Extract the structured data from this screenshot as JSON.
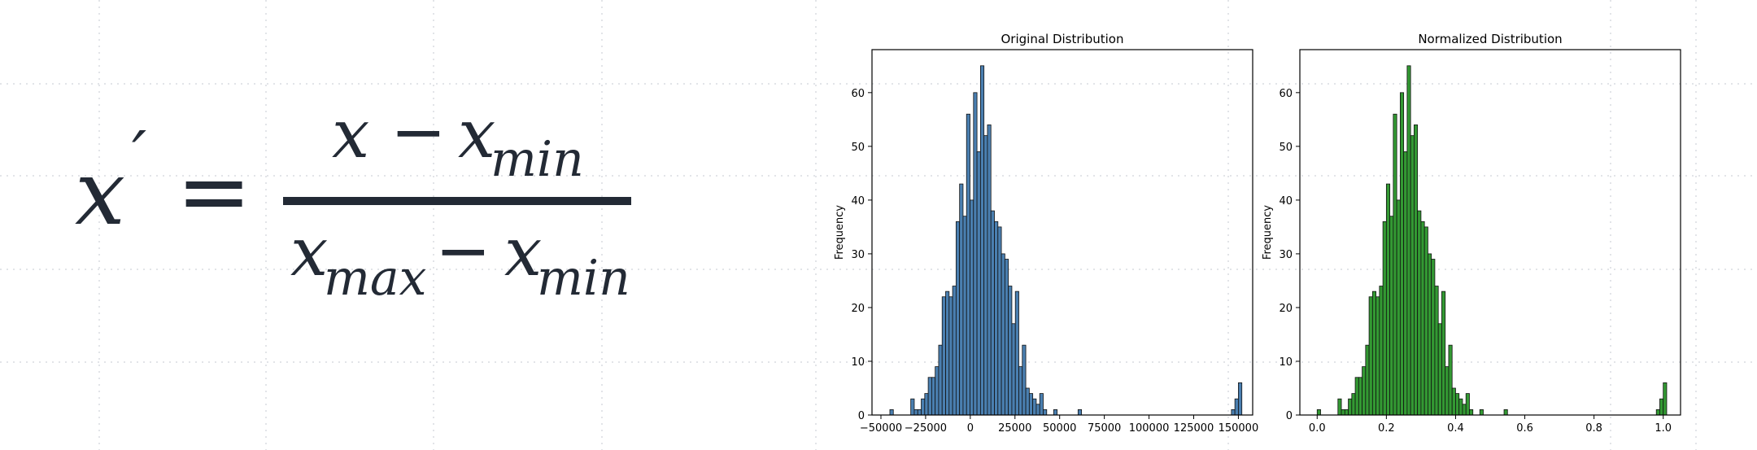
{
  "formula": {
    "lhs_var": "x",
    "lhs_prime": "′",
    "equals": "=",
    "num_x": "x",
    "num_minus": "−",
    "num_x2": "x",
    "num_sub": "min",
    "den_x": "x",
    "den_sub1": "max",
    "den_minus": "−",
    "den_x2": "x",
    "den_sub2": "min"
  },
  "chart_data": [
    {
      "type": "bar",
      "title": "Original Distribution",
      "xlabel": "",
      "ylabel": "Frequency",
      "xlim": [
        -55000,
        158000
      ],
      "ylim": [
        0,
        68
      ],
      "xticks": [
        -50000,
        -25000,
        0,
        25000,
        50000,
        75000,
        100000,
        125000,
        150000
      ],
      "xtick_labels": [
        "−50000",
        "−25000",
        "0",
        "25000",
        "50000",
        "75000",
        "100000",
        "125000",
        "150000"
      ],
      "yticks": [
        0,
        10,
        20,
        30,
        40,
        50,
        60
      ],
      "ytick_labels": [
        "0",
        "10",
        "20",
        "30",
        "40",
        "50",
        "60"
      ],
      "color": "#4a7fb0",
      "bin_start": -45000,
      "bin_width": 1950,
      "counts": [
        1,
        0,
        0,
        0,
        0,
        0,
        3,
        1,
        1,
        3,
        4,
        7,
        7,
        9,
        13,
        22,
        23,
        22,
        24,
        36,
        43,
        37,
        56,
        40,
        60,
        49,
        65,
        52,
        54,
        38,
        36,
        35,
        30,
        29,
        24,
        17,
        23,
        9,
        13,
        5,
        4,
        3,
        2,
        4,
        1,
        0,
        0,
        1,
        0,
        0,
        0,
        0,
        0,
        0,
        1,
        0,
        0,
        0,
        0,
        0,
        0,
        0,
        0,
        0,
        0,
        0,
        0,
        0,
        0,
        0,
        0,
        0,
        0,
        0,
        0,
        0,
        0,
        0,
        0,
        0,
        0,
        0,
        0,
        0,
        0,
        0,
        0,
        0,
        0,
        0,
        0,
        0,
        0,
        0,
        0,
        0,
        0,
        0,
        1,
        3,
        6
      ]
    },
    {
      "type": "bar",
      "title": "Normalized Distribution",
      "xlabel": "",
      "ylabel": "Frequency",
      "xlim": [
        -0.05,
        1.05
      ],
      "ylim": [
        0,
        68
      ],
      "xticks": [
        0.0,
        0.2,
        0.4,
        0.6,
        0.8,
        1.0
      ],
      "xtick_labels": [
        "0.0",
        "0.2",
        "0.4",
        "0.6",
        "0.8",
        "1.0"
      ],
      "yticks": [
        0,
        10,
        20,
        30,
        40,
        50,
        60
      ],
      "ytick_labels": [
        "0",
        "10",
        "20",
        "30",
        "40",
        "50",
        "60"
      ],
      "color": "#339933",
      "bin_start": 0.0,
      "bin_width": 0.01,
      "counts": [
        1,
        0,
        0,
        0,
        0,
        0,
        3,
        1,
        1,
        3,
        4,
        7,
        7,
        9,
        13,
        22,
        23,
        22,
        24,
        36,
        43,
        37,
        56,
        40,
        60,
        49,
        65,
        52,
        54,
        38,
        36,
        35,
        30,
        29,
        24,
        17,
        23,
        9,
        13,
        5,
        4,
        3,
        2,
        4,
        1,
        0,
        0,
        1,
        0,
        0,
        0,
        0,
        0,
        0,
        1,
        0,
        0,
        0,
        0,
        0,
        0,
        0,
        0,
        0,
        0,
        0,
        0,
        0,
        0,
        0,
        0,
        0,
        0,
        0,
        0,
        0,
        0,
        0,
        0,
        0,
        0,
        0,
        0,
        0,
        0,
        0,
        0,
        0,
        0,
        0,
        0,
        0,
        0,
        0,
        0,
        0,
        0,
        0,
        1,
        3,
        6
      ]
    }
  ]
}
